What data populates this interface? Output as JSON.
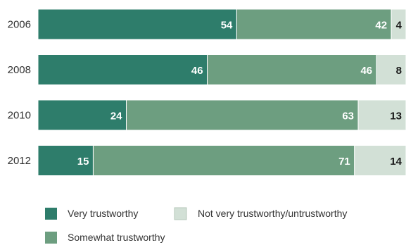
{
  "chart_data": {
    "type": "bar",
    "orientation": "horizontal",
    "stacked": true,
    "categories": [
      "2006",
      "2008",
      "2010",
      "2012"
    ],
    "series": [
      {
        "name": "Very trustworthy",
        "values": [
          54,
          46,
          24,
          15
        ],
        "color": "#2e7d6b",
        "label_color": "#ffffff"
      },
      {
        "name": "Somewhat trustworthy",
        "values": [
          42,
          46,
          63,
          71
        ],
        "color": "#6d9e80",
        "label_color": "#ffffff"
      },
      {
        "name": "Not very trustworthy/untrustworthy",
        "values": [
          4,
          8,
          13,
          14
        ],
        "color": "#d2e0d6",
        "label_color": "#1a1a1a"
      }
    ],
    "xlim": [
      0,
      100
    ],
    "grid": false,
    "legend_position": "bottom-left"
  }
}
